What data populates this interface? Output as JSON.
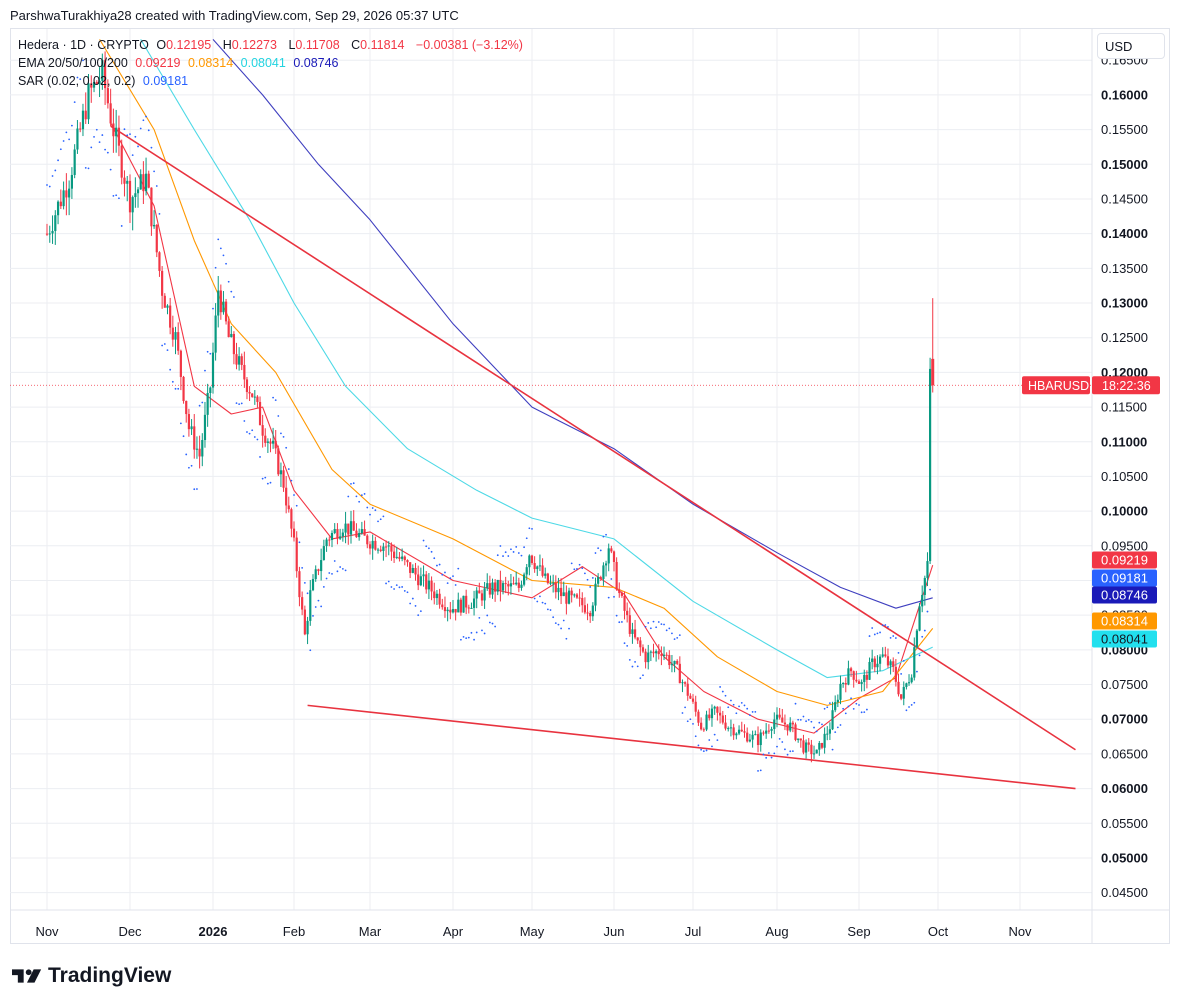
{
  "header": {
    "caption": "ParshwaTurakhiya28 created with TradingView.com, Sep 29, 2026 05:37 UTC"
  },
  "legend": {
    "symbol_line": {
      "name": "Hedera · 1D · CRYPTO",
      "o_label": "O",
      "o_value": "0.12195",
      "h_label": "H",
      "h_value": "0.12273",
      "l_label": "L",
      "l_value": "0.11708",
      "c_label": "C",
      "c_value": "0.11814",
      "change": "−0.00381 (−3.12%)"
    },
    "ema_line": {
      "label": "EMA 20/50/100/200",
      "v20": "0.09219",
      "v50": "0.08314",
      "v100": "0.08041",
      "v200": "0.08746"
    },
    "sar_line": {
      "label": "SAR (0.02, 0.02, 0.2)",
      "value": "0.09181"
    }
  },
  "currency": "USD",
  "ticker_tag": {
    "symbol": "HBARUSD",
    "countdown": "18:22:36"
  },
  "colors": {
    "up": "#089981",
    "down": "#f23645",
    "ema20": "#f23645",
    "ema50": "#ff9800",
    "ema100": "#4dd9e6",
    "ema200": "#3f3fbf",
    "sar": "#2962ff",
    "trendline": "#e8333f",
    "grid": "#eceef2",
    "axis_text": "#131722"
  },
  "logo_text": "TradingView",
  "chart_data": {
    "type": "candlestick",
    "symbol": "HBARUSD",
    "interval": "1D",
    "x_axis_labels": [
      "Nov",
      "Dec",
      "2026",
      "Feb",
      "Mar",
      "Apr",
      "May",
      "Jun",
      "Jul",
      "Aug",
      "Sep",
      "Oct",
      "Nov"
    ],
    "y_axis_ticks": [
      "0.16500",
      "0.16000",
      "0.15500",
      "0.15000",
      "0.14500",
      "0.14000",
      "0.13500",
      "0.13000",
      "0.12500",
      "0.12000",
      "0.11500",
      "0.11000",
      "0.10500",
      "0.10000",
      "0.09500",
      "0.09000",
      "0.08500",
      "0.08000",
      "0.07500",
      "0.07000",
      "0.06500",
      "0.06000",
      "0.05500",
      "0.05000",
      "0.04500"
    ],
    "y_range": [
      0.0425,
      0.1695
    ],
    "price_labels": [
      {
        "value": "0.09219",
        "color": "#f23645"
      },
      {
        "value": "0.09181",
        "color": "#2962ff"
      },
      {
        "value": "0.08746",
        "color": "#1a1ab8"
      },
      {
        "value": "0.08314",
        "color": "#ff9800"
      },
      {
        "value": "0.08041",
        "color": "#22e0ee"
      }
    ],
    "last_close": 0.11814,
    "series": [
      {
        "name": "EMA 20",
        "color": "#f23645",
        "points": [
          [
            "Nov 24",
            0.156
          ],
          [
            "Dec 10",
            0.144
          ],
          [
            "Dec 25",
            0.118
          ],
          [
            "Jan 8",
            0.114
          ],
          [
            "Jan 20",
            0.115
          ],
          [
            "Feb 1",
            0.103
          ],
          [
            "Feb 15",
            0.096
          ],
          [
            "Mar 1",
            0.097
          ],
          [
            "Apr 1",
            0.09
          ],
          [
            "May 1",
            0.0875
          ],
          [
            "May 20",
            0.092
          ],
          [
            "Jun 5",
            0.088
          ],
          [
            "Jun 20",
            0.079
          ],
          [
            "Jul 5",
            0.074
          ],
          [
            "Jul 25",
            0.07
          ],
          [
            "Aug 15",
            0.068
          ],
          [
            "Sep 1",
            0.073
          ],
          [
            "Sep 15",
            0.076
          ],
          [
            "Sep 29",
            0.0922
          ]
        ]
      },
      {
        "name": "EMA 50",
        "color": "#ff9800",
        "points": [
          [
            "Nov 20",
            0.168
          ],
          [
            "Dec 10",
            0.155
          ],
          [
            "Dec 25",
            0.139
          ],
          [
            "Jan 8",
            0.127
          ],
          [
            "Jan 25",
            0.12
          ],
          [
            "Feb 15",
            0.106
          ],
          [
            "Mar 1",
            0.101
          ],
          [
            "Apr 1",
            0.096
          ],
          [
            "May 1",
            0.09
          ],
          [
            "Jun 1",
            0.089
          ],
          [
            "Jun 20",
            0.086
          ],
          [
            "Jul 10",
            0.079
          ],
          [
            "Aug 1",
            0.074
          ],
          [
            "Aug 20",
            0.072
          ],
          [
            "Sep 10",
            0.074
          ],
          [
            "Sep 29",
            0.0831
          ]
        ]
      },
      {
        "name": "EMA 100",
        "color": "#4dd9e6",
        "points": [
          [
            "Dec 5",
            0.168
          ],
          [
            "Dec 25",
            0.155
          ],
          [
            "Jan 15",
            0.142
          ],
          [
            "Feb 1",
            0.13
          ],
          [
            "Feb 20",
            0.118
          ],
          [
            "Mar 15",
            0.109
          ],
          [
            "Apr 10",
            0.103
          ],
          [
            "May 1",
            0.099
          ],
          [
            "Jun 1",
            0.096
          ],
          [
            "Jul 1",
            0.087
          ],
          [
            "Aug 1",
            0.08
          ],
          [
            "Aug 20",
            0.076
          ],
          [
            "Sep 10",
            0.077
          ],
          [
            "Sep 29",
            0.0804
          ]
        ]
      },
      {
        "name": "EMA 200",
        "color": "#3f3fbf",
        "points": [
          [
            "Jan 1",
            0.168
          ],
          [
            "Jan 20",
            0.16
          ],
          [
            "Feb 10",
            0.15
          ],
          [
            "Mar 1",
            0.142
          ],
          [
            "Apr 1",
            0.127
          ],
          [
            "May 1",
            0.115
          ],
          [
            "Jun 1",
            0.109
          ],
          [
            "Jul 1",
            0.101
          ],
          [
            "Aug 1",
            0.094
          ],
          [
            "Aug 25",
            0.089
          ],
          [
            "Sep 15",
            0.086
          ],
          [
            "Sep 29",
            0.0875
          ]
        ]
      }
    ],
    "trendlines": [
      {
        "name": "descending resistance",
        "from": [
          "Nov 24",
          0.1555
        ],
        "to": [
          "Nov 25 +",
          0.0656
        ]
      },
      {
        "name": "descending support",
        "from": [
          "Feb 6",
          0.072
        ],
        "to": [
          "Nov 25 +",
          0.06
        ]
      }
    ],
    "xlabel": "",
    "ylabel": "",
    "grid": true,
    "legend_position": "top-left"
  }
}
